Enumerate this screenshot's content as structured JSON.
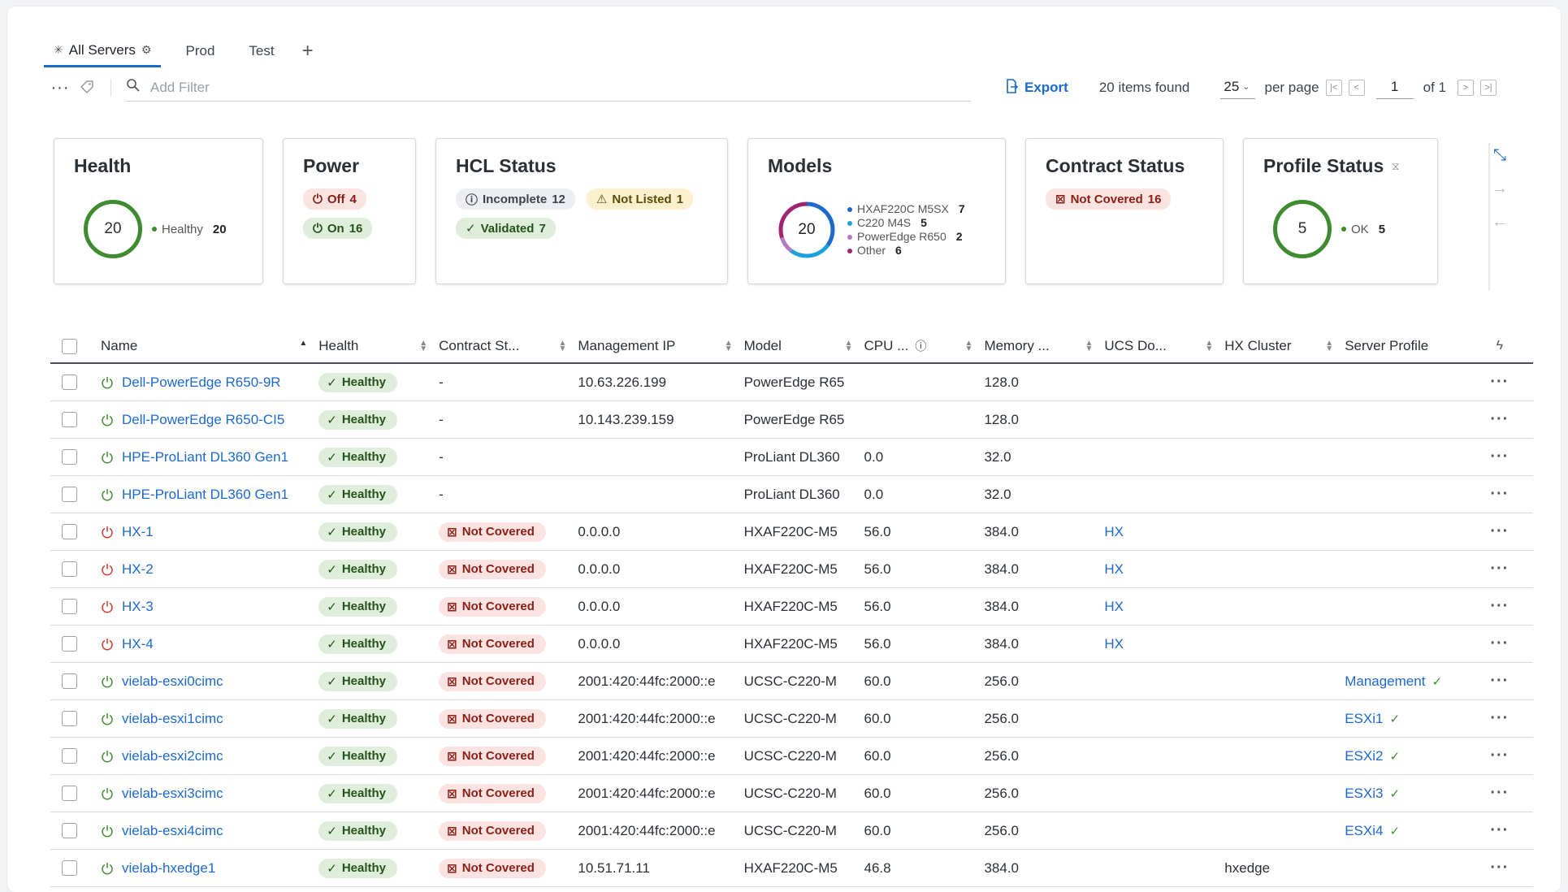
{
  "tabs": [
    {
      "label": "All Servers",
      "active": true
    },
    {
      "label": "Prod",
      "active": false
    },
    {
      "label": "Test",
      "active": false
    }
  ],
  "toolbar": {
    "filter_placeholder": "Add Filter",
    "export_label": "Export",
    "items_found": "20 items found",
    "per_page_value": "25",
    "per_page_label": "per page",
    "page_current": "1",
    "page_of": "of 1"
  },
  "widgets": {
    "health": {
      "title": "Health",
      "total": "20",
      "legend_label": "Healthy",
      "legend_value": "20"
    },
    "power": {
      "title": "Power",
      "off_label": "Off",
      "off_value": "4",
      "on_label": "On",
      "on_value": "16"
    },
    "hcl": {
      "title": "HCL Status",
      "incomplete_label": "Incomplete",
      "incomplete_value": "12",
      "notlisted_label": "Not Listed",
      "notlisted_value": "1",
      "validated_label": "Validated",
      "validated_value": "7"
    },
    "models": {
      "title": "Models",
      "total": "20",
      "items": [
        {
          "label": "HXAF220C M5SX",
          "value": "7",
          "color": "#1d69cc"
        },
        {
          "label": "C220 M4S",
          "value": "5",
          "color": "#1ba2dc"
        },
        {
          "label": "PowerEdge R650",
          "value": "2",
          "color": "#b37bc4"
        },
        {
          "label": "Other",
          "value": "6",
          "color": "#a0256e"
        }
      ]
    },
    "contract": {
      "title": "Contract Status",
      "nc_label": "Not Covered",
      "nc_value": "16"
    },
    "profile": {
      "title": "Profile Status",
      "total": "5",
      "legend_label": "OK",
      "legend_value": "5"
    }
  },
  "table": {
    "headers": [
      "Name",
      "Health",
      "Contract St...",
      "Management IP",
      "Model",
      "CPU ...",
      "Memory ...",
      "UCS Do...",
      "HX Cluster",
      "Server Profile"
    ],
    "rows": [
      {
        "name": "Dell-PowerEdge R650-9R",
        "power": "on",
        "health": "Healthy",
        "contract": "-",
        "ip": "10.63.226.199",
        "model": "PowerEdge R65",
        "cpu": "",
        "memory": "128.0",
        "ucs": "",
        "hx": "",
        "profile": ""
      },
      {
        "name": "Dell-PowerEdge R650-CI5",
        "power": "on",
        "health": "Healthy",
        "contract": "-",
        "ip": "10.143.239.159",
        "model": "PowerEdge R65",
        "cpu": "",
        "memory": "128.0",
        "ucs": "",
        "hx": "",
        "profile": ""
      },
      {
        "name": "HPE-ProLiant DL360 Gen1",
        "power": "on",
        "health": "Healthy",
        "contract": "-",
        "ip": "",
        "model": "ProLiant DL360",
        "cpu": "0.0",
        "memory": "32.0",
        "ucs": "",
        "hx": "",
        "profile": ""
      },
      {
        "name": "HPE-ProLiant DL360 Gen1",
        "power": "on",
        "health": "Healthy",
        "contract": "-",
        "ip": "",
        "model": "ProLiant DL360",
        "cpu": "0.0",
        "memory": "32.0",
        "ucs": "",
        "hx": "",
        "profile": ""
      },
      {
        "name": "HX-1",
        "power": "off",
        "health": "Healthy",
        "contract": "Not Covered",
        "ip": "0.0.0.0",
        "model": "HXAF220C-M5",
        "cpu": "56.0",
        "memory": "384.0",
        "ucs": "HX",
        "hx": "",
        "profile": ""
      },
      {
        "name": "HX-2",
        "power": "off",
        "health": "Healthy",
        "contract": "Not Covered",
        "ip": "0.0.0.0",
        "model": "HXAF220C-M5",
        "cpu": "56.0",
        "memory": "384.0",
        "ucs": "HX",
        "hx": "",
        "profile": ""
      },
      {
        "name": "HX-3",
        "power": "off",
        "health": "Healthy",
        "contract": "Not Covered",
        "ip": "0.0.0.0",
        "model": "HXAF220C-M5",
        "cpu": "56.0",
        "memory": "384.0",
        "ucs": "HX",
        "hx": "",
        "profile": ""
      },
      {
        "name": "HX-4",
        "power": "off",
        "health": "Healthy",
        "contract": "Not Covered",
        "ip": "0.0.0.0",
        "model": "HXAF220C-M5",
        "cpu": "56.0",
        "memory": "384.0",
        "ucs": "HX",
        "hx": "",
        "profile": ""
      },
      {
        "name": "vielab-esxi0cimc",
        "power": "on",
        "health": "Healthy",
        "contract": "Not Covered",
        "ip": "2001:420:44fc:2000::e",
        "model": "UCSC-C220-M",
        "cpu": "60.0",
        "memory": "256.0",
        "ucs": "",
        "hx": "",
        "profile": "Management"
      },
      {
        "name": "vielab-esxi1cimc",
        "power": "on",
        "health": "Healthy",
        "contract": "Not Covered",
        "ip": "2001:420:44fc:2000::e",
        "model": "UCSC-C220-M",
        "cpu": "60.0",
        "memory": "256.0",
        "ucs": "",
        "hx": "",
        "profile": "ESXi1"
      },
      {
        "name": "vielab-esxi2cimc",
        "power": "on",
        "health": "Healthy",
        "contract": "Not Covered",
        "ip": "2001:420:44fc:2000::e",
        "model": "UCSC-C220-M",
        "cpu": "60.0",
        "memory": "256.0",
        "ucs": "",
        "hx": "",
        "profile": "ESXi2"
      },
      {
        "name": "vielab-esxi3cimc",
        "power": "on",
        "health": "Healthy",
        "contract": "Not Covered",
        "ip": "2001:420:44fc:2000::e",
        "model": "UCSC-C220-M",
        "cpu": "60.0",
        "memory": "256.0",
        "ucs": "",
        "hx": "",
        "profile": "ESXi3"
      },
      {
        "name": "vielab-esxi4cimc",
        "power": "on",
        "health": "Healthy",
        "contract": "Not Covered",
        "ip": "2001:420:44fc:2000::e",
        "model": "UCSC-C220-M",
        "cpu": "60.0",
        "memory": "256.0",
        "ucs": "",
        "hx": "",
        "profile": "ESXi4"
      },
      {
        "name": "vielab-hxedge1",
        "power": "on",
        "health": "Healthy",
        "contract": "Not Covered",
        "ip": "10.51.71.11",
        "model": "HXAF220C-M5",
        "cpu": "46.8",
        "memory": "384.0",
        "ucs": "",
        "hx": "hxedge",
        "profile": ""
      }
    ]
  },
  "colors": {
    "accent": "#1d69cc",
    "healthy": "#3e8c2f",
    "power_on": "#3e8c2f",
    "power_off": "#d0382b"
  }
}
